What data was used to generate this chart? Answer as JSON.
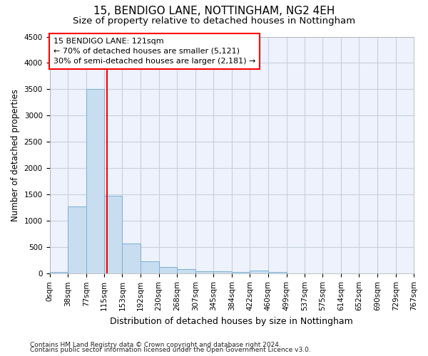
{
  "title1": "15, BENDIGO LANE, NOTTINGHAM, NG2 4EH",
  "title2": "Size of property relative to detached houses in Nottingham",
  "xlabel": "Distribution of detached houses by size in Nottingham",
  "ylabel": "Number of detached properties",
  "bar_color": "#c9ddf0",
  "bar_edge_color": "#7bafd4",
  "vline_color": "red",
  "vline_x": 121,
  "bin_edges": [
    0,
    38,
    77,
    115,
    153,
    192,
    230,
    268,
    307,
    345,
    384,
    422,
    460,
    499,
    537,
    575,
    614,
    652,
    690,
    729,
    767
  ],
  "bar_heights": [
    30,
    1270,
    3500,
    1480,
    575,
    240,
    120,
    85,
    50,
    40,
    35,
    55,
    25,
    5,
    5,
    5,
    5,
    3,
    2,
    2
  ],
  "ylim": [
    0,
    4500
  ],
  "yticks": [
    0,
    500,
    1000,
    1500,
    2000,
    2500,
    3000,
    3500,
    4000,
    4500
  ],
  "annotation_line1": "15 BENDIGO LANE: 121sqm",
  "annotation_line2": "← 70% of detached houses are smaller (5,121)",
  "annotation_line3": "30% of semi-detached houses are larger (2,181) →",
  "footnote1": "Contains HM Land Registry data © Crown copyright and database right 2024.",
  "footnote2": "Contains public sector information licensed under the Open Government Licence v3.0.",
  "bg_color": "#edf2fc",
  "grid_color": "#c8d0de",
  "title1_fontsize": 11,
  "title2_fontsize": 9.5,
  "ylabel_fontsize": 8.5,
  "xlabel_fontsize": 9,
  "tick_fontsize": 7.5,
  "annotation_fontsize": 8,
  "footnote_fontsize": 6.5
}
